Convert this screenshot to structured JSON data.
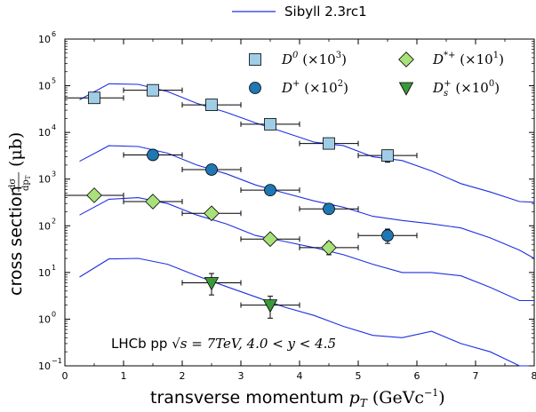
{
  "chart_data": {
    "type": "scatter",
    "title": "",
    "xlabel": "transverse momentum",
    "xlabel_math": "p",
    "xlabel_math_sub": "T",
    "xlabel_unit": "(GeVc",
    "xlabel_unit_sup": "−1",
    "xlabel_unit_close": ")",
    "ylabel": "cross section",
    "ylabel_frac_num": "dσ",
    "ylabel_frac_den": "dp",
    "ylabel_frac_den_sub": "T",
    "ylabel_unit": "(μb)",
    "xlim": [
      0,
      8
    ],
    "ylim": [
      0.1,
      1000000
    ],
    "yscale": "log",
    "grid": false,
    "x_ticks": [
      "0",
      "1",
      "2",
      "3",
      "4",
      "5",
      "6",
      "7",
      "8"
    ],
    "y_ticks": [
      {
        "base": "10",
        "exp": "−1"
      },
      {
        "base": "10",
        "exp": "0"
      },
      {
        "base": "10",
        "exp": "1"
      },
      {
        "base": "10",
        "exp": "2"
      },
      {
        "base": "10",
        "exp": "3"
      },
      {
        "base": "10",
        "exp": "4"
      },
      {
        "base": "10",
        "exp": "5"
      },
      {
        "base": "10",
        "exp": "6"
      }
    ],
    "annotation": {
      "text_main": "LHCb pp ",
      "sqrt_s": "√s",
      "energy": " = 7TeV, 4.0 < y < 4.5"
    },
    "model_legend": {
      "label": "Sibyll 2.3rc1",
      "color": "#1f2fe0"
    },
    "model_curves": [
      {
        "x": [
          0.25,
          0.75,
          1.25,
          1.75,
          2.25,
          2.75,
          3.25,
          3.75,
          4.25,
          4.75,
          5.25,
          5.75,
          6.25,
          6.75,
          7.25,
          7.75,
          8.0
        ],
        "y": [
          50000,
          110000,
          107000,
          75000,
          42000,
          27000,
          16000,
          10000,
          6200,
          5200,
          3000,
          2500,
          1500,
          800,
          530,
          330,
          320
        ]
      },
      {
        "x": [
          0.25,
          0.75,
          1.25,
          1.75,
          2.25,
          2.75,
          3.25,
          3.75,
          4.25,
          4.75,
          5.25,
          5.75,
          6.25,
          6.75,
          7.25,
          7.75,
          8.0
        ],
        "y": [
          2400,
          5200,
          5000,
          3600,
          2000,
          1300,
          750,
          500,
          340,
          250,
          160,
          130,
          110,
          90,
          55,
          30,
          20
        ]
      },
      {
        "x": [
          0.25,
          0.75,
          1.25,
          1.75,
          2.25,
          2.75,
          3.25,
          3.75,
          4.25,
          4.75,
          5.25,
          5.75,
          6.25,
          6.75,
          7.25,
          7.75,
          8.0
        ],
        "y": [
          170,
          370,
          400,
          300,
          170,
          110,
          62,
          46,
          34,
          24,
          15,
          10,
          10,
          8.5,
          4.8,
          2.5,
          2.5
        ]
      },
      {
        "x": [
          0.25,
          0.75,
          1.25,
          1.75,
          2.25,
          2.75,
          3.25,
          3.75,
          4.25,
          4.75,
          5.25,
          5.75,
          6.25,
          6.75,
          7.25,
          7.75,
          8.0
        ],
        "y": [
          8.0,
          19.5,
          20.0,
          15.0,
          8.5,
          5.0,
          3.0,
          1.8,
          1.2,
          0.7,
          0.45,
          0.4,
          0.55,
          0.3,
          0.2,
          0.1,
          0.1
        ]
      }
    ],
    "series": [
      {
        "name": "D",
        "name_sup": "0",
        "scale_label": "(×10",
        "scale_sup": "3",
        "scale_close": ")",
        "marker": "square",
        "color": "#9fcde6",
        "points": [
          {
            "x": 0.5,
            "y": 55000,
            "xlo": 0,
            "xhi": 1,
            "ylo": 50000,
            "yhi": 60000
          },
          {
            "x": 1.5,
            "y": 80000,
            "xlo": 1,
            "xhi": 2,
            "ylo": 75000,
            "yhi": 86000
          },
          {
            "x": 2.5,
            "y": 39000,
            "xlo": 2,
            "xhi": 3,
            "ylo": 36000,
            "yhi": 42000
          },
          {
            "x": 3.5,
            "y": 15000,
            "xlo": 3,
            "xhi": 4,
            "ylo": 13800,
            "yhi": 16500
          },
          {
            "x": 4.5,
            "y": 5800,
            "xlo": 4,
            "xhi": 5,
            "ylo": 5300,
            "yhi": 6500
          },
          {
            "x": 5.5,
            "y": 3200,
            "xlo": 5,
            "xhi": 6,
            "ylo": 2300,
            "yhi": 4200
          }
        ]
      },
      {
        "name": "D",
        "name_sup": "+",
        "scale_label": "(×10",
        "scale_sup": "2",
        "scale_close": ")",
        "marker": "circle",
        "color": "#1f77b4",
        "points": [
          {
            "x": 1.5,
            "y": 3300,
            "xlo": 1,
            "xhi": 2,
            "ylo": 2900,
            "yhi": 3700
          },
          {
            "x": 2.5,
            "y": 1600,
            "xlo": 2,
            "xhi": 3,
            "ylo": 1350,
            "yhi": 1850
          },
          {
            "x": 3.5,
            "y": 580,
            "xlo": 3,
            "xhi": 4,
            "ylo": 500,
            "yhi": 680
          },
          {
            "x": 4.5,
            "y": 230,
            "xlo": 4,
            "xhi": 5,
            "ylo": 195,
            "yhi": 270
          },
          {
            "x": 5.5,
            "y": 62,
            "xlo": 5,
            "xhi": 6,
            "ylo": 42,
            "yhi": 85
          }
        ]
      },
      {
        "name": "D",
        "name_sup": "*+",
        "scale_label": "(×10",
        "scale_sup": "1",
        "scale_close": ")",
        "marker": "diamond",
        "color": "#a8e07a",
        "points": [
          {
            "x": 0.5,
            "y": 450,
            "xlo": 0,
            "xhi": 1,
            "ylo": 390,
            "yhi": 520
          },
          {
            "x": 1.5,
            "y": 330,
            "xlo": 1,
            "xhi": 2,
            "ylo": 300,
            "yhi": 365
          },
          {
            "x": 2.5,
            "y": 185,
            "xlo": 2,
            "xhi": 3,
            "ylo": 165,
            "yhi": 205
          },
          {
            "x": 3.5,
            "y": 52,
            "xlo": 3,
            "xhi": 4,
            "ylo": 46,
            "yhi": 60
          },
          {
            "x": 4.5,
            "y": 34,
            "xlo": 4,
            "xhi": 5,
            "ylo": 24,
            "yhi": 45
          }
        ]
      },
      {
        "name": "D",
        "name_sub": "s",
        "name_sup": "+",
        "scale_label": "(×10",
        "scale_sup": "0",
        "scale_close": ")",
        "marker": "triangle-down",
        "color": "#3a9a3a",
        "points": [
          {
            "x": 2.5,
            "y": 6.0,
            "xlo": 2,
            "xhi": 3,
            "ylo": 3.3,
            "yhi": 9.5
          },
          {
            "x": 3.5,
            "y": 2.0,
            "xlo": 3,
            "xhi": 4,
            "ylo": 1.05,
            "yhi": 3.1
          }
        ]
      }
    ]
  }
}
